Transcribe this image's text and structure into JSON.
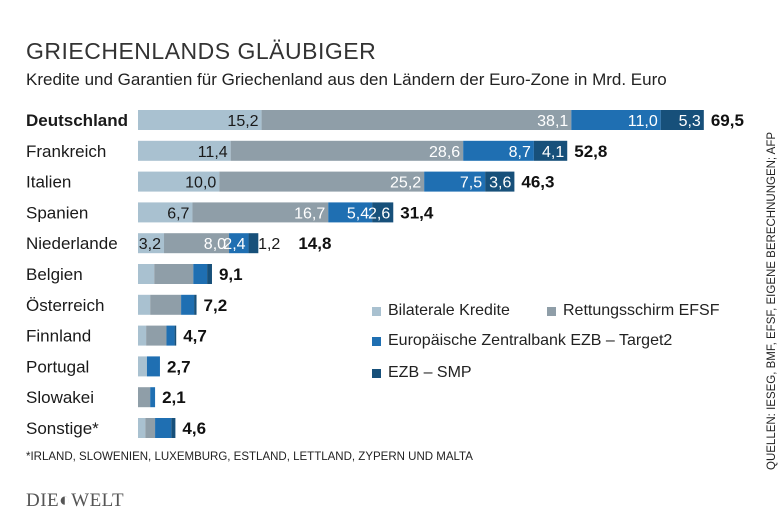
{
  "chart_data": {
    "type": "bar",
    "orientation": "horizontal",
    "stacked": true,
    "title": "GRIECHENLANDS GLÄUBIGER",
    "subtitle": "Kredite und Garantien für Griechenland aus den Ländern der Euro-Zone in Mrd. Euro",
    "categories": [
      "Deutschland",
      "Frankreich",
      "Italien",
      "Spanien",
      "Niederlande",
      "Belgien",
      "Österreich",
      "Finnland",
      "Portugal",
      "Slowakei",
      "Sonstige*"
    ],
    "totals": [
      "69,5",
      "52,8",
      "46,3",
      "31,4",
      "14,8",
      "9,1",
      "7,2",
      "4,7",
      "2,7",
      "2,1",
      "4,6"
    ],
    "series": [
      {
        "name": "Bilaterale Kredite",
        "color": "#a9c1d0",
        "values": [
          15.2,
          11.4,
          10.0,
          6.7,
          3.2,
          2.0,
          1.5,
          1.0,
          1.1,
          0,
          0.9
        ],
        "labels": [
          "15,2",
          "11,4",
          "10,0",
          "6,7",
          "3,2",
          null,
          null,
          null,
          null,
          null,
          null
        ]
      },
      {
        "name": "Rettungsschirm EFSF",
        "color": "#8f9ea8",
        "values": [
          38.1,
          28.6,
          25.2,
          16.7,
          8.0,
          4.8,
          3.8,
          2.5,
          0,
          1.5,
          1.2
        ],
        "labels": [
          "38,1",
          "28,6",
          "25,2",
          "16,7",
          "8,0",
          null,
          null,
          null,
          null,
          null,
          null
        ]
      },
      {
        "name": "Europäische Zentralbank EZB – Target2",
        "color": "#1f6fb2",
        "values": [
          11.0,
          8.7,
          7.5,
          5.4,
          2.4,
          1.7,
          1.6,
          1.0,
          1.6,
          0.6,
          2.0
        ],
        "labels": [
          "11,0",
          "8,7",
          "7,5",
          "5,4",
          "2,4",
          null,
          null,
          null,
          null,
          null,
          null
        ]
      },
      {
        "name": "EZB – SMP",
        "color": "#17507a",
        "values": [
          5.3,
          4.1,
          3.6,
          2.6,
          1.2,
          0.6,
          0.3,
          0.2,
          0,
          0,
          0.5
        ],
        "labels": [
          "5,3",
          "4,1",
          "3,6",
          "2,6",
          "1,2",
          null,
          null,
          null,
          null,
          null,
          null
        ]
      }
    ],
    "xlim": [
      0,
      70
    ],
    "grid": false,
    "legend_position": "bottom-right inside"
  },
  "footnote": "*IRLAND, SLOWENIEN, LUXEMBURG, ESTLAND, LETTLAND, ZYPERN UND MALTA",
  "source": "QUELLEN: IESEG, BMF, EFSF, EIGENE BERECHNUNGEN; AFP",
  "logo": "DIE WELT"
}
